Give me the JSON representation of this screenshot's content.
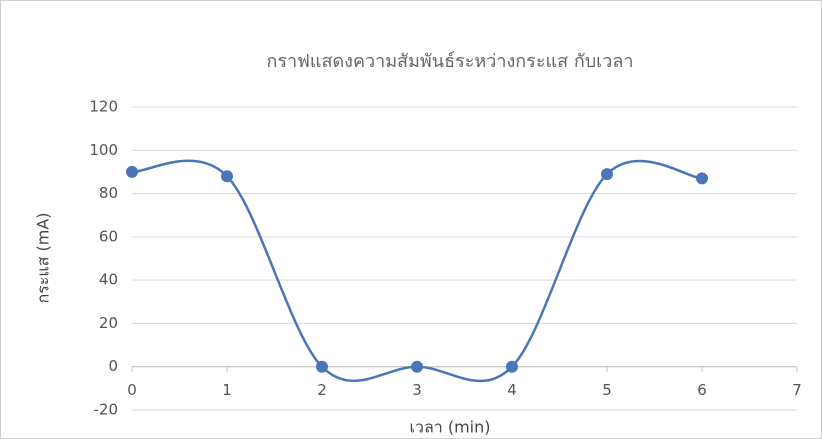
{
  "chart_data": {
    "type": "line",
    "title": "กราฟแสดงความสัมพันธ์ระหว่างกระแส กับเวลา",
    "x_label": "เวลา (min)",
    "y_label": "กระแส (mA)",
    "x": [
      0,
      1,
      2,
      3,
      4,
      5,
      6
    ],
    "series": [
      {
        "name": "กระแส",
        "color": "#4a76b8",
        "values": [
          90,
          88,
          0,
          0,
          0,
          89,
          87
        ]
      }
    ],
    "xlim": [
      0,
      7
    ],
    "xticks": [
      0,
      1,
      2,
      3,
      4,
      5,
      6,
      7
    ],
    "ylim": [
      -20,
      120
    ],
    "yticks": [
      -20,
      0,
      20,
      40,
      60,
      80,
      100,
      120
    ],
    "grid": true,
    "smooth": true,
    "legend": false
  }
}
